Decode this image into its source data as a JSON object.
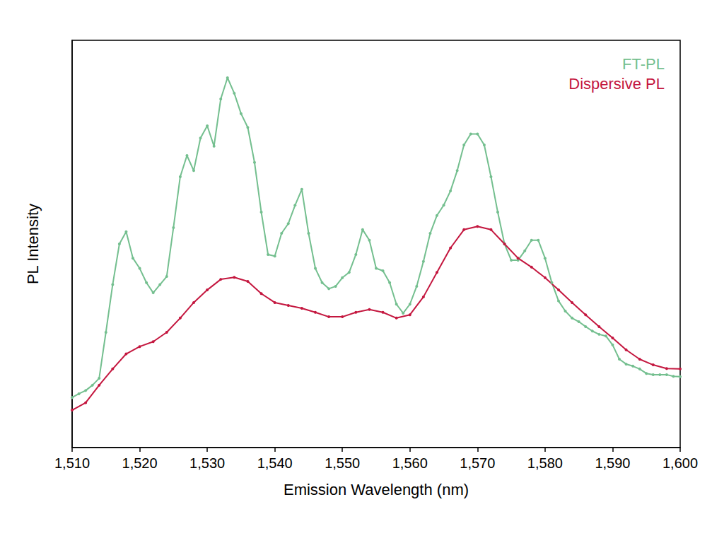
{
  "chart_data": {
    "type": "line",
    "x_label": "Emission Wavelength (nm)",
    "y_label": "PL Intensity",
    "xlim": [
      1510,
      1600
    ],
    "xticks": [
      1510,
      1520,
      1530,
      1540,
      1550,
      1560,
      1570,
      1580,
      1590,
      1600
    ],
    "ylim": [
      0,
      100
    ],
    "tick_labels": "x",
    "grid": false,
    "legend": "upper right",
    "series": [
      {
        "name": "FT-PL",
        "color": "#74bf8f",
        "marker": "circle",
        "line_style": "solid",
        "x": [
          1510,
          1511,
          1512,
          1513,
          1514,
          1515,
          1516,
          1517,
          1518,
          1519,
          1520,
          1521,
          1522,
          1523,
          1524,
          1525,
          1526,
          1527,
          1528,
          1529,
          1530,
          1531,
          1532,
          1533,
          1534,
          1535,
          1536,
          1537,
          1538,
          1539,
          1540,
          1541,
          1542,
          1543,
          1544,
          1545,
          1546,
          1547,
          1548,
          1549,
          1550,
          1551,
          1552,
          1553,
          1554,
          1555,
          1556,
          1557,
          1558,
          1559,
          1560,
          1561,
          1562,
          1563,
          1564,
          1565,
          1566,
          1567,
          1568,
          1569,
          1570,
          1571,
          1572,
          1573,
          1574,
          1575,
          1576,
          1577,
          1578,
          1579,
          1580,
          1581,
          1582,
          1583,
          1584,
          1585,
          1586,
          1587,
          1588,
          1589,
          1590,
          1591,
          1592,
          1593,
          1594,
          1595,
          1596,
          1597,
          1598,
          1599,
          1600
        ],
        "values": [
          12.3,
          13.2,
          14,
          15.3,
          17,
          28.3,
          40,
          50,
          53,
          46.5,
          44,
          40.5,
          38,
          40,
          42,
          54,
          66.5,
          71.7,
          68,
          76,
          79,
          74,
          85.6,
          90.8,
          87,
          82,
          78.6,
          70,
          57.8,
          47.4,
          47,
          52.6,
          55,
          59.5,
          63.4,
          52.6,
          44,
          40.5,
          39,
          39.6,
          41.7,
          43,
          47.4,
          53.5,
          50.9,
          44,
          43.4,
          40.5,
          35.2,
          33,
          35.2,
          39.6,
          45.7,
          52.6,
          57,
          59.5,
          63,
          68,
          74.3,
          77,
          77,
          74.3,
          66.5,
          57.8,
          50,
          46,
          46,
          48.3,
          50.9,
          50.9,
          46.5,
          40.5,
          36,
          33.5,
          31.8,
          30.9,
          29.7,
          28.6,
          27.8,
          27.4,
          25.2,
          21.7,
          20.5,
          20,
          19.3,
          18.2,
          17.9,
          17.9,
          17.9,
          17.5,
          17.4
        ]
      },
      {
        "name": "Dispersive PL",
        "color": "#c4173f",
        "marker": "circle",
        "line_style": "solid",
        "x": [
          1510,
          1512,
          1514,
          1516,
          1518,
          1520,
          1522,
          1524,
          1526,
          1528,
          1530,
          1532,
          1534,
          1536,
          1538,
          1540,
          1542,
          1544,
          1546,
          1548,
          1550,
          1552,
          1554,
          1556,
          1558,
          1560,
          1562,
          1564,
          1566,
          1568,
          1570,
          1572,
          1574,
          1576,
          1578,
          1580,
          1582,
          1584,
          1586,
          1588,
          1590,
          1592,
          1594,
          1596,
          1598,
          1600
        ],
        "values": [
          9.2,
          11,
          15.3,
          19.3,
          23,
          24.8,
          26,
          28.3,
          31.8,
          35.6,
          38.7,
          41.3,
          41.8,
          40.8,
          37.8,
          35.6,
          34.9,
          34.2,
          33.2,
          32.1,
          32.1,
          33.2,
          33.9,
          33.2,
          31.8,
          32.6,
          37,
          43,
          49,
          53.5,
          54.3,
          53.5,
          50,
          46.5,
          44.3,
          41.7,
          38.7,
          35.6,
          32.6,
          29.7,
          26.9,
          24,
          21.7,
          20.3,
          19.4,
          19.3
        ]
      }
    ]
  }
}
